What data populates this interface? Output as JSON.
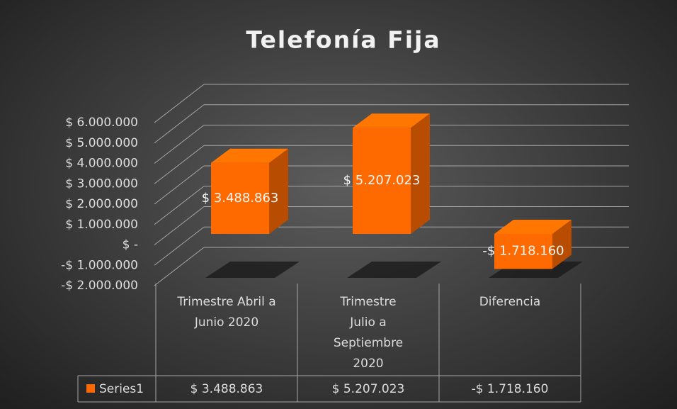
{
  "chart_data": {
    "type": "bar3d",
    "title": "Telefonía Fija",
    "categories": [
      "Trimestre Abril a Junio 2020",
      "Trimestre Julio a Septiembre 2020",
      "Diferencia"
    ],
    "series": [
      {
        "name": "Series1",
        "color": "#ff6a00",
        "values": [
          3488863,
          5207023,
          -1718160
        ],
        "value_labels": [
          "$ 3.488.863",
          "$ 5.207.023",
          "-$ 1.718.160"
        ]
      }
    ],
    "ylim": [
      -2000000,
      6000000
    ],
    "yticks": [
      {
        "value": -2000000,
        "label": "-$ 2.000.000"
      },
      {
        "value": -1000000,
        "label": "-$ 1.000.000"
      },
      {
        "value": 0,
        "label": "$ -"
      },
      {
        "value": 1000000,
        "label": "$ 1.000.000"
      },
      {
        "value": 2000000,
        "label": "$ 2.000.000"
      },
      {
        "value": 3000000,
        "label": "$ 3.000.000"
      },
      {
        "value": 4000000,
        "label": "$ 4.000.000"
      },
      {
        "value": 5000000,
        "label": "$ 5.000.000"
      },
      {
        "value": 6000000,
        "label": "$ 6.000.000"
      }
    ],
    "grid": true,
    "data_table": true
  }
}
